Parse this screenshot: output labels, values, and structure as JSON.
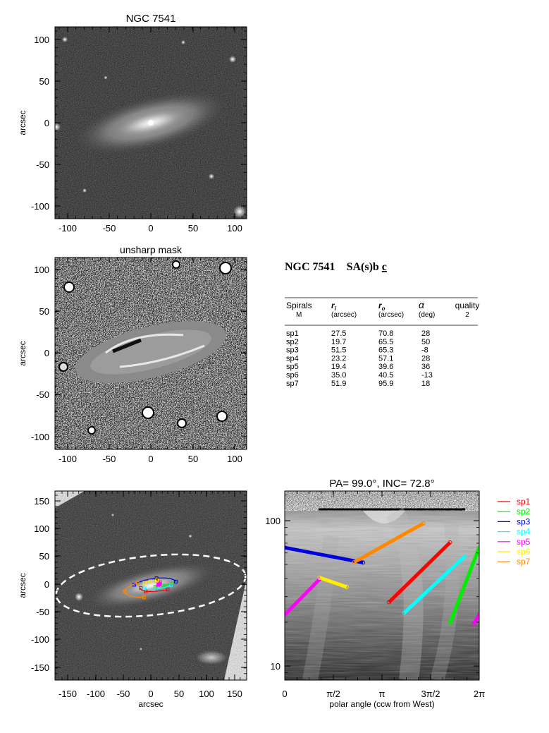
{
  "panels": {
    "direct": {
      "title": "NGC 7541",
      "ylabel": "arcsec",
      "xticks": [
        "-100",
        "-50",
        "0",
        "50",
        "100"
      ],
      "yticks": [
        "100",
        "50",
        "0",
        "-50",
        "-100"
      ]
    },
    "unsharp": {
      "title": "unsharp mask",
      "ylabel": "arcsec",
      "xticks": [
        "-100",
        "-50",
        "0",
        "50",
        "100"
      ],
      "yticks": [
        "100",
        "50",
        "0",
        "-50",
        "-100"
      ]
    },
    "overlay": {
      "xlabel": "arcsec",
      "ylabel": "arcsec",
      "xticks": [
        "-150",
        "-100",
        "-50",
        "0",
        "50",
        "100",
        "150"
      ],
      "yticks": [
        "150",
        "100",
        "50",
        "0",
        "-50",
        "-100",
        "-150"
      ]
    },
    "polar": {
      "title": "PA=  99.0°, INC=  72.8°",
      "xlabel": "polar angle (ccw from West)",
      "xticks": [
        "0",
        "π/2",
        "π",
        "3π/2",
        "2π"
      ],
      "yticks": [
        "100",
        "10"
      ]
    }
  },
  "info": {
    "galaxy": "NGC 7541",
    "morph_main": "SA(s)b",
    "morph_under": "c",
    "headers": {
      "spirals": "Spirals",
      "spirals_sub": "M",
      "ri": "r",
      "ri_sub": "i",
      "ri_unit": "(arcsec)",
      "ro": "r",
      "ro_sub": "o",
      "ro_unit": "(arcsec)",
      "alpha": "α",
      "alpha_unit": "(deg)",
      "quality": "quality",
      "quality_value": "2"
    },
    "rows": [
      {
        "name": "sp1",
        "ri": "27.5",
        "ro": "70.8",
        "alpha": "28"
      },
      {
        "name": "sp2",
        "ri": "19.7",
        "ro": "65.5",
        "alpha": "50"
      },
      {
        "name": "sp3",
        "ri": "51.5",
        "ro": "65.3",
        "alpha": "-8"
      },
      {
        "name": "sp4",
        "ri": "23.2",
        "ro": "57.1",
        "alpha": "28"
      },
      {
        "name": "sp5",
        "ri": "19.4",
        "ro": "39.6",
        "alpha": "36"
      },
      {
        "name": "sp6",
        "ri": "35.0",
        "ro": "40.5",
        "alpha": "-13"
      },
      {
        "name": "sp7",
        "ri": "51.9",
        "ro": "95.9",
        "alpha": "18"
      }
    ]
  },
  "chart_data": {
    "type": "line",
    "title": "PA=  99.0°, INC=  72.8°",
    "xlabel": "polar angle (ccw from West)",
    "ylabel": "",
    "y_scale": "log",
    "xlim": [
      0,
      6.2832
    ],
    "ylim": [
      8,
      160
    ],
    "legend_position": "right",
    "series": [
      {
        "name": "sp1",
        "color": "#ff0000",
        "x": [
          3.37,
          5.34
        ],
        "y": [
          27.5,
          70.8
        ]
      },
      {
        "name": "sp2",
        "color": "#00ee00",
        "x": [
          5.34,
          6.283
        ],
        "y": [
          19.7,
          65.5
        ]
      },
      {
        "name": "sp3",
        "color": "#0000dd",
        "x": [
          0.0,
          2.53
        ],
        "y": [
          65.3,
          51.5
        ]
      },
      {
        "name": "sp4",
        "color": "#00ffff",
        "x": [
          3.86,
          5.82
        ],
        "y": [
          23.2,
          57.1
        ]
      },
      {
        "name": "sp5",
        "color": "#ff00ff",
        "x": [
          0.0,
          1.13
        ],
        "y": [
          22.5,
          39.6
        ]
      },
      {
        "name": "sp5",
        "color": "#ff00ff",
        "x": [
          6.1,
          6.283
        ],
        "y": [
          19.4,
          22.5
        ]
      },
      {
        "name": "sp6",
        "color": "#ffee00",
        "x": [
          1.13,
          2.0
        ],
        "y": [
          40.5,
          35.0
        ]
      },
      {
        "name": "sp7",
        "color": "#ff8800",
        "x": [
          2.25,
          4.48
        ],
        "y": [
          51.9,
          95.9
        ]
      }
    ],
    "colors": {
      "sp1": "#ff0000",
      "sp2": "#00ee00",
      "sp3": "#0000dd",
      "sp4": "#00ffff",
      "sp5": "#ff00ff",
      "sp6": "#ffee00",
      "sp7": "#ff8800"
    }
  }
}
